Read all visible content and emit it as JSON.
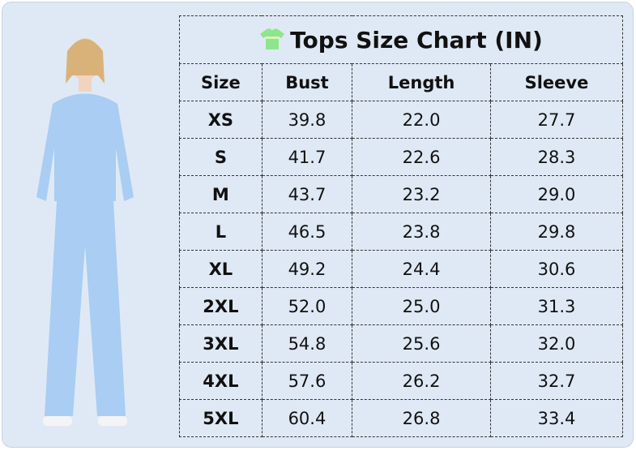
{
  "title": "Tops Size Chart (IN)",
  "title_icon": "t-shirt-icon",
  "headers": [
    "Size",
    "Bust",
    "Length",
    "Sleeve"
  ],
  "rows": [
    [
      "XS",
      "39.8",
      "22.0",
      "27.7"
    ],
    [
      "S",
      "41.7",
      "22.6",
      "28.3"
    ],
    [
      "M",
      "43.7",
      "23.2",
      "29.0"
    ],
    [
      "L",
      "46.5",
      "23.8",
      "29.8"
    ],
    [
      "XL",
      "49.2",
      "24.4",
      "30.6"
    ],
    [
      "2XL",
      "52.0",
      "25.0",
      "31.3"
    ],
    [
      "3XL",
      "54.8",
      "25.6",
      "32.0"
    ],
    [
      "4XL",
      "57.6",
      "26.2",
      "32.7"
    ],
    [
      "5XL",
      "60.4",
      "26.8",
      "33.4"
    ]
  ],
  "colors": {
    "background": "#dfe9f5",
    "garment": "#a9cdf3",
    "icon": "#8ee68a"
  }
}
